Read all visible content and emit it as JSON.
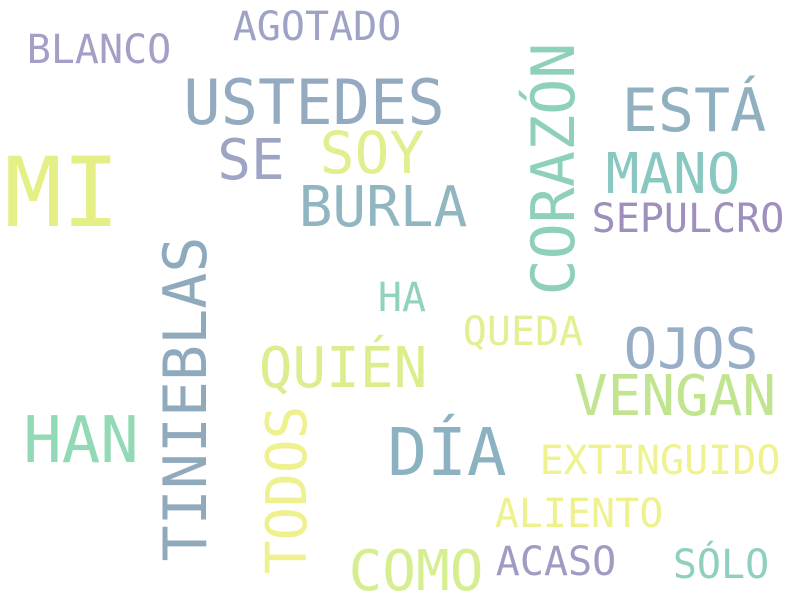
{
  "cloud": {
    "words": {
      "mi": {
        "text": "MI",
        "color": "#e4ef85"
      },
      "ustedes": {
        "text": "USTEDES",
        "color": "#93aac0"
      },
      "esta": {
        "text": "ESTÁ",
        "color": "#90b0c0"
      },
      "soy": {
        "text": "SOY",
        "color": "#e3ee8f"
      },
      "se": {
        "text": "SE",
        "color": "#9ea5c4"
      },
      "mano": {
        "text": "MANO",
        "color": "#88c8c0"
      },
      "burla": {
        "text": "BURLA",
        "color": "#91b6c2"
      },
      "sepulcro": {
        "text": "SEPULCRO",
        "color": "#9e8fbd"
      },
      "corazon": {
        "text": "CORAZÓN",
        "color": "#8fd0bd"
      },
      "agotado": {
        "text": "AGOTADO",
        "color": "#9ea3c6"
      },
      "blanco": {
        "text": "BLANCO",
        "color": "#a59ec6"
      },
      "ha": {
        "text": "HA",
        "color": "#8fd3bd"
      },
      "queda": {
        "text": "QUEDA",
        "color": "#e5ee90"
      },
      "ojos": {
        "text": "OJOS",
        "color": "#98aec6"
      },
      "quien": {
        "text": "QUIÉN",
        "color": "#dbee8d"
      },
      "vengan": {
        "text": "VENGAN",
        "color": "#c0e48f"
      },
      "tinieblas": {
        "text": "TINIEBLAS",
        "color": "#8fa9bd"
      },
      "han": {
        "text": "HAN",
        "color": "#92d9b6"
      },
      "dia": {
        "text": "DÍA",
        "color": "#8cb2c1"
      },
      "extinguido": {
        "text": "EXTINGUIDO",
        "color": "#eff28e"
      },
      "todos": {
        "text": "TODOS",
        "color": "#eff08e"
      },
      "aliento": {
        "text": "ALIENTO",
        "color": "#eef18e"
      },
      "acaso": {
        "text": "ACASO",
        "color": "#9e9cc2"
      },
      "solo": {
        "text": "SÓLO",
        "color": "#8fcfbf"
      },
      "como": {
        "text": "COMO",
        "color": "#d5ee90"
      }
    }
  }
}
